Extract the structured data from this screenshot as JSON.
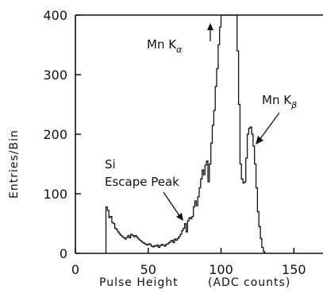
{
  "chart_data": {
    "type": "line",
    "xlabel": "Pulse Height",
    "xlabel_unit": "(ADC counts)",
    "ylabel": "Entries/Bin",
    "xlim": [
      0,
      170
    ],
    "ylim": [
      0,
      400
    ],
    "xticks": [
      0,
      50,
      100,
      150
    ],
    "yticks": [
      0,
      100,
      200,
      300,
      400
    ],
    "grid": false,
    "series": [
      {
        "x": [
          20,
          21,
          22,
          23,
          24,
          25,
          26,
          27,
          28,
          29,
          30,
          31,
          32,
          33,
          34,
          35,
          36,
          37,
          38,
          39,
          40,
          41,
          42,
          43,
          44,
          45,
          46,
          47,
          48,
          49,
          50,
          51,
          52,
          53,
          54,
          55,
          56,
          57,
          58,
          59,
          60,
          61,
          62,
          63,
          64,
          65,
          66,
          67,
          68,
          69,
          70,
          71,
          72,
          73,
          74,
          75,
          76,
          77,
          78,
          79,
          80,
          81,
          82,
          83,
          84,
          85,
          86,
          87,
          88,
          89,
          90,
          91,
          92,
          93,
          94,
          95,
          96,
          97,
          98,
          99,
          100,
          101,
          102,
          103,
          104,
          105,
          106,
          107,
          108,
          109,
          110,
          111,
          112,
          113,
          114,
          115,
          116,
          117,
          118,
          119,
          120,
          121,
          122,
          123,
          124,
          125,
          126,
          127,
          128,
          129,
          130
        ],
        "y": [
          0,
          78,
          72,
          60,
          62,
          52,
          50,
          42,
          40,
          36,
          33,
          30,
          28,
          26,
          24,
          27,
          30,
          26,
          32,
          30,
          28,
          30,
          27,
          24,
          22,
          20,
          18,
          17,
          15,
          14,
          16,
          15,
          12,
          11,
          13,
          12,
          14,
          10,
          13,
          15,
          14,
          12,
          15,
          16,
          18,
          20,
          22,
          18,
          24,
          22,
          25,
          28,
          32,
          38,
          42,
          50,
          36,
          55,
          60,
          58,
          62,
          78,
          88,
          80,
          95,
          110,
          125,
          140,
          132,
          148,
          155,
          120,
          150,
          185,
          215,
          240,
          280,
          310,
          350,
          380,
          400,
          400,
          400,
          400,
          400,
          400,
          400,
          400,
          400,
          400,
          400,
          340,
          250,
          150,
          125,
          118,
          120,
          160,
          200,
          210,
          212,
          200,
          180,
          150,
          110,
          70,
          45,
          25,
          10,
          3,
          0
        ]
      }
    ],
    "annotations": [
      {
        "text": "Mn K",
        "subscript": "α",
        "points_to": "above 400 (peak off scale)"
      },
      {
        "text": "Mn K",
        "subscript": "β",
        "points_to": "peak near x=120"
      },
      {
        "text": "Si",
        "line2": "Escape Peak",
        "points_to": "shoulder near x=75"
      }
    ]
  }
}
